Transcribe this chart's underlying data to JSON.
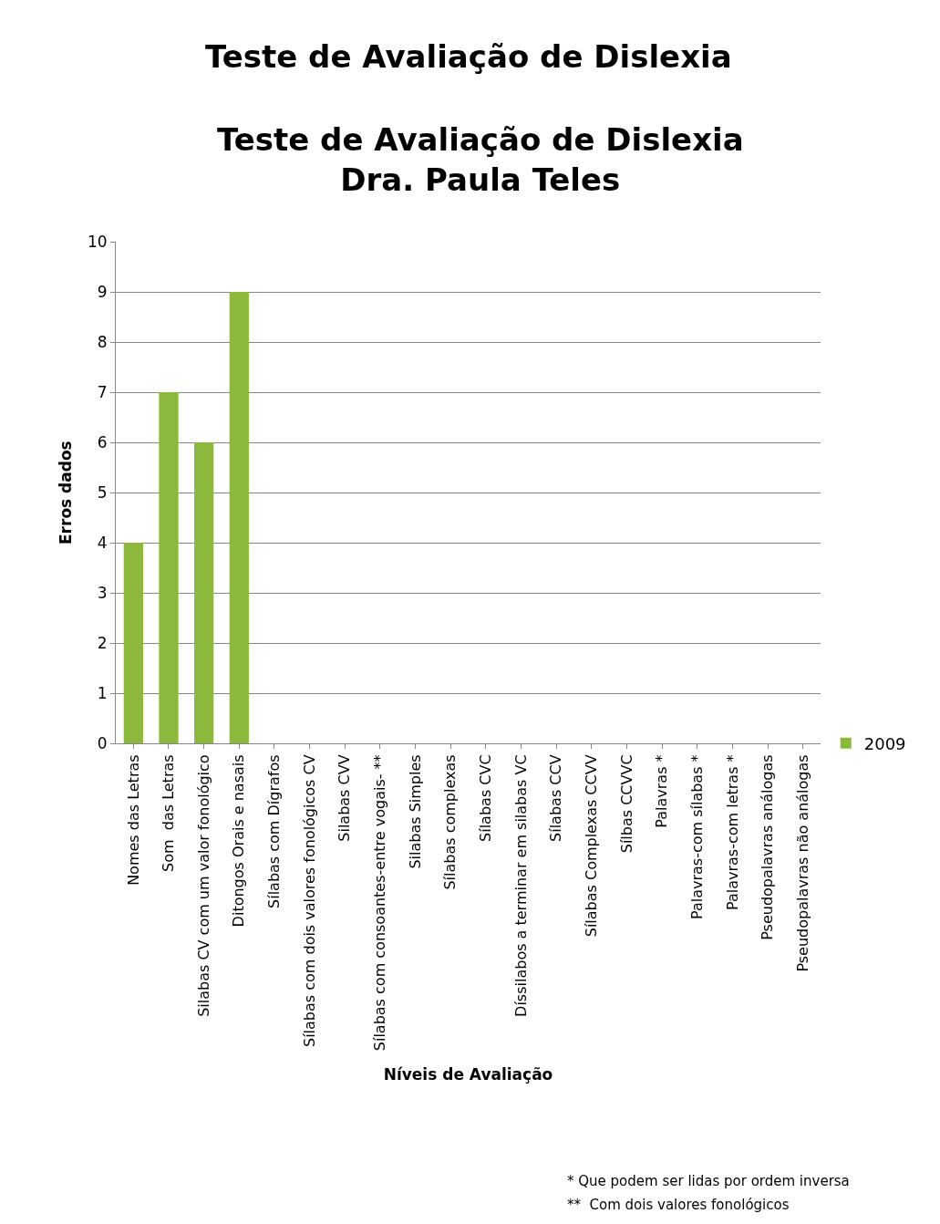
{
  "chart_data": {
    "type": "bar",
    "title": "Teste de Avaliação de Dislexia",
    "subtitle": "Teste de Avaliação de Dislexia\nDra. Paula Teles",
    "xlabel": "Níveis de Avaliação",
    "ylabel": "Erros dados",
    "categories": [
      "Nomes das Letras",
      "Som  das Letras",
      "Silabas CV com um valor fonológico",
      "Ditongos Orais e nasais",
      "Sílabas com Dígrafos",
      "Sílabas com dois valores fonológicos CV",
      "Silabas CVV",
      "Sílabas com consoantes-entre vogais- **",
      "Silabas Simples",
      "Sílabas complexas",
      "Sílabas CVC",
      "Díssilabos a terminar em silabas VC",
      "Sílabas CCV",
      "Sílabas Complexas CCVV",
      "Sílbas CCVVC",
      "Palavras *",
      "Palavras-com sílabas *",
      "Palavras-com letras *",
      "Pseudopalavras análogas",
      "Pseudopalavras não análogas"
    ],
    "series": [
      {
        "name": "2009",
        "color": "#8cb83c",
        "values": [
          4,
          7,
          6,
          9,
          0,
          0,
          0,
          0,
          0,
          0,
          0,
          0,
          0,
          0,
          0,
          0,
          0,
          0,
          0,
          0
        ]
      }
    ],
    "ylim": [
      0,
      10
    ],
    "yticks": [
      0,
      1,
      2,
      3,
      4,
      5,
      6,
      7,
      8,
      9,
      10
    ],
    "grid": "y",
    "legend": "right",
    "annotations": [
      "* Que podem ser lidas por ordem inversa",
      "**  Com dois valores fonológicos"
    ]
  }
}
